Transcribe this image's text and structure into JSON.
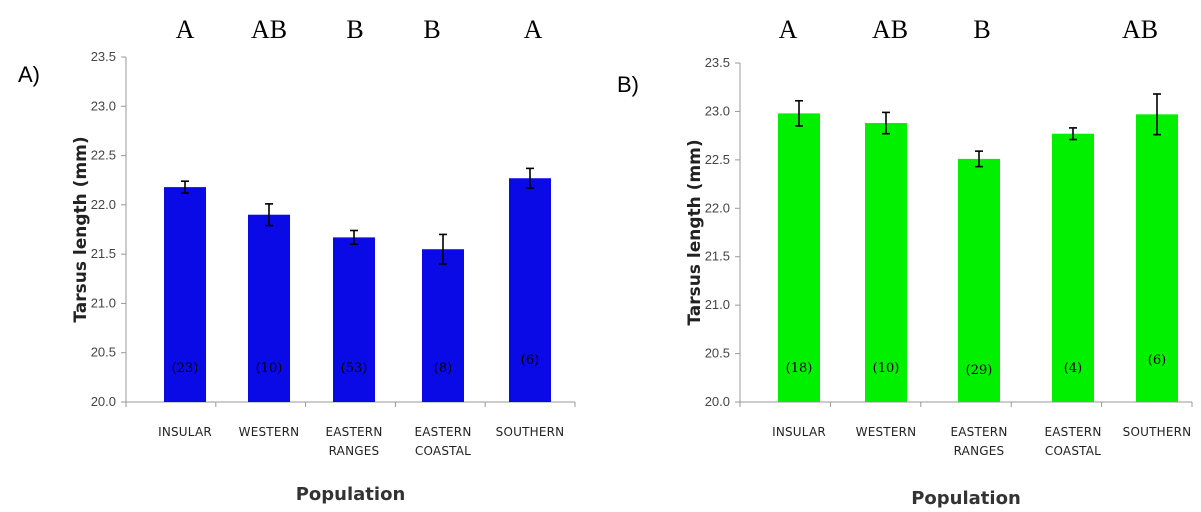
{
  "chart_data": [
    {
      "type": "bar",
      "panel_label": "A)",
      "bar_color": "#0a0ae6",
      "categories": [
        "INSULAR",
        "WESTERN",
        "EASTERN RANGES",
        "EASTERN COASTAL",
        "SOUTHERN"
      ],
      "values": [
        22.18,
        21.9,
        21.67,
        21.55,
        22.27
      ],
      "errors": [
        0.06,
        0.11,
        0.07,
        0.15,
        0.1
      ],
      "sample_sizes": [
        "(23)",
        "(10)",
        "(53)",
        "(8)",
        "(6)"
      ],
      "significance": [
        "A",
        "AB",
        "B",
        "B",
        "A"
      ],
      "xlabel": "Population",
      "ylabel": "Tarsus length (mm)",
      "ylim": [
        20.0,
        23.5
      ],
      "yticks": [
        "20.0",
        "20.5",
        "21.0",
        "21.5",
        "22.0",
        "22.5",
        "23.0",
        "23.5"
      ]
    },
    {
      "type": "bar",
      "panel_label": "B)",
      "bar_color": "#00f000",
      "categories": [
        "INSULAR",
        "WESTERN",
        "EASTERN RANGES",
        "EASTERN COASTAL",
        "SOUTHERN"
      ],
      "values": [
        22.98,
        22.88,
        22.51,
        22.77,
        22.97
      ],
      "errors": [
        0.13,
        0.11,
        0.08,
        0.06,
        0.21
      ],
      "sample_sizes": [
        "(18)",
        "(10)",
        "(29)",
        "(4)",
        "(6)"
      ],
      "significance": [
        "A",
        "AB",
        "B",
        "",
        "AB"
      ],
      "xlabel": "Population",
      "ylabel": "Tarsus length (mm)",
      "ylim": [
        20.0,
        23.5
      ],
      "yticks": [
        "20.0",
        "20.5",
        "21.0",
        "21.5",
        "22.0",
        "22.5",
        "23.0",
        "23.5"
      ]
    }
  ]
}
